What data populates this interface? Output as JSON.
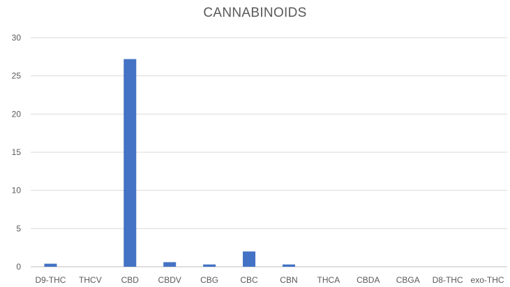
{
  "chart_data": {
    "type": "bar",
    "title": "CANNABINOIDS",
    "xlabel": "",
    "ylabel": "",
    "categories": [
      "D9-THC",
      "THCV",
      "CBD",
      "CBDV",
      "CBG",
      "CBC",
      "CBN",
      "THCA",
      "CBDA",
      "CBGA",
      "D8-THC",
      "exo-THC"
    ],
    "values": [
      0.4,
      0,
      27.2,
      0.6,
      0.3,
      2.0,
      0.3,
      0,
      0,
      0,
      0,
      0
    ],
    "ylim": [
      0,
      30
    ],
    "yticks": [
      0,
      5,
      10,
      15,
      20,
      25,
      30
    ],
    "grid": true,
    "legend": "none",
    "colors": {
      "bar": "#4472c4",
      "grid": "#d9d9d9",
      "axis": "#bfbfbf",
      "text": "#595959"
    }
  }
}
